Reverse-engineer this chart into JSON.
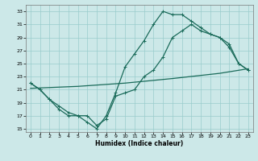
{
  "xlabel": "Humidex (Indice chaleur)",
  "xlim": [
    -0.5,
    23.5
  ],
  "ylim": [
    14.5,
    34.0
  ],
  "xticks": [
    0,
    1,
    2,
    3,
    4,
    5,
    6,
    7,
    8,
    9,
    10,
    11,
    12,
    13,
    14,
    15,
    16,
    17,
    18,
    19,
    20,
    21,
    22,
    23
  ],
  "yticks": [
    15,
    17,
    19,
    21,
    23,
    25,
    27,
    29,
    31,
    33
  ],
  "bg_color": "#cce8e8",
  "grid_color": "#99cccc",
  "line_color": "#1a6b5a",
  "line1_x": [
    0,
    1,
    2,
    3,
    4,
    5,
    6,
    7,
    8,
    9,
    10,
    11,
    12,
    13,
    14,
    15,
    16,
    17,
    18,
    19,
    20,
    21,
    22,
    23
  ],
  "line1_y": [
    22,
    21,
    19.5,
    18,
    17,
    17,
    17,
    15.5,
    16.5,
    20,
    20.5,
    21,
    23,
    24,
    26,
    29,
    30,
    31,
    30,
    29.5,
    29,
    28,
    25,
    24
  ],
  "line2_x": [
    0,
    1,
    2,
    3,
    4,
    5,
    6,
    7,
    8,
    9,
    10,
    11,
    12,
    13,
    14,
    15,
    16,
    17,
    18,
    19,
    20,
    21,
    22,
    23
  ],
  "line2_y": [
    22,
    21,
    19.5,
    18.5,
    17.5,
    17,
    16,
    15,
    17,
    20.5,
    24.5,
    26.5,
    28.5,
    31,
    33,
    32.5,
    32.5,
    31.5,
    30.5,
    29.5,
    29,
    27.5,
    25,
    24
  ],
  "line3_x": [
    0,
    5,
    10,
    15,
    20,
    23
  ],
  "line3_y": [
    21.2,
    21.5,
    22.0,
    22.7,
    23.5,
    24.2
  ],
  "marker_size": 2.5,
  "line_width": 0.9,
  "xlabel_fontsize": 5.5,
  "tick_labelsize": 4.5
}
